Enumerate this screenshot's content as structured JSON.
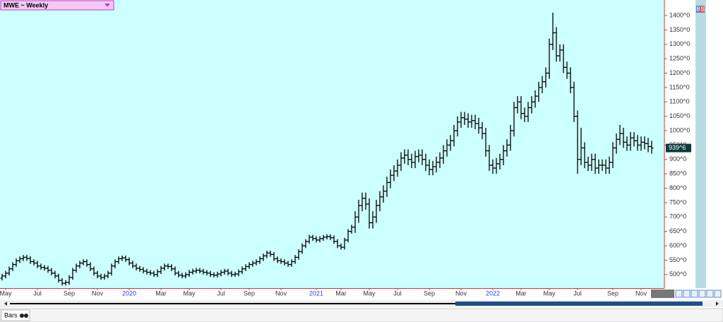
{
  "chart_data": {
    "type": "ohlc",
    "title": "MWE ~ Weekly",
    "color": "#000000",
    "background": "#ccffff",
    "grid": false,
    "ylim": [
      453,
      1454
    ],
    "yticks": [
      {
        "value": 500,
        "label": "500^0"
      },
      {
        "value": 550,
        "label": "550^0"
      },
      {
        "value": 600,
        "label": "600^0"
      },
      {
        "value": 650,
        "label": "650^0"
      },
      {
        "value": 700,
        "label": "700^0"
      },
      {
        "value": 750,
        "label": "750^0"
      },
      {
        "value": 800,
        "label": "800^0"
      },
      {
        "value": 850,
        "label": "850^0"
      },
      {
        "value": 900,
        "label": "900^0"
      },
      {
        "value": 950,
        "label": "950^0"
      },
      {
        "value": 1000,
        "label": "1000^0"
      },
      {
        "value": 1050,
        "label": "1050^0"
      },
      {
        "value": 1100,
        "label": "1100^0"
      },
      {
        "value": 1150,
        "label": "1150^0"
      },
      {
        "value": 1200,
        "label": "1200^0"
      },
      {
        "value": 1250,
        "label": "1250^0"
      },
      {
        "value": 1300,
        "label": "1300^0"
      },
      {
        "value": 1350,
        "label": "1350^0"
      },
      {
        "value": 1400,
        "label": "1400^0"
      }
    ],
    "xlim": [
      -0.6,
      187.6
    ],
    "xticks": [
      {
        "value": 1,
        "label": "May"
      },
      {
        "value": 10,
        "label": "Jul"
      },
      {
        "value": 19,
        "label": "Sep"
      },
      {
        "value": 27,
        "label": "Nov"
      },
      {
        "value": 36,
        "label": "2020"
      },
      {
        "value": 45,
        "label": "Mar"
      },
      {
        "value": 53,
        "label": "May"
      },
      {
        "value": 62,
        "label": "Jul"
      },
      {
        "value": 70,
        "label": "Sep"
      },
      {
        "value": 79,
        "label": "Nov"
      },
      {
        "value": 89,
        "label": "2021"
      },
      {
        "value": 96,
        "label": "Mar"
      },
      {
        "value": 104,
        "label": "May"
      },
      {
        "value": 112,
        "label": "Jul"
      },
      {
        "value": 121,
        "label": "Sep"
      },
      {
        "value": 130,
        "label": "Nov"
      },
      {
        "value": 139,
        "label": "2022"
      },
      {
        "value": 147,
        "label": "Mar"
      },
      {
        "value": 155,
        "label": "May"
      },
      {
        "value": 163,
        "label": "Jul"
      },
      {
        "value": 173,
        "label": "Sep"
      },
      {
        "value": 181,
        "label": "Nov"
      }
    ],
    "open": [
      488,
      495,
      505,
      520,
      535,
      548,
      555,
      560,
      556,
      545,
      540,
      530,
      525,
      522,
      515,
      505,
      495,
      480,
      470,
      473,
      490,
      515,
      530,
      540,
      545,
      535,
      520,
      505,
      495,
      490,
      495,
      505,
      530,
      545,
      555,
      558,
      552,
      540,
      530,
      522,
      518,
      512,
      508,
      505,
      500,
      510,
      522,
      530,
      528,
      520,
      505,
      498,
      495,
      500,
      508,
      512,
      515,
      512,
      508,
      505,
      500,
      498,
      502,
      508,
      512,
      505,
      500,
      502,
      510,
      520,
      528,
      535,
      540,
      545,
      555,
      565,
      575,
      570,
      555,
      548,
      545,
      540,
      535,
      545,
      560,
      580,
      600,
      615,
      630,
      625,
      620,
      625,
      630,
      632,
      628,
      615,
      600,
      595,
      620,
      650,
      665,
      700,
      740,
      765,
      745,
      680,
      700,
      740,
      770,
      790,
      820,
      845,
      860,
      880,
      905,
      915,
      900,
      890,
      910,
      915,
      900,
      880,
      865,
      875,
      890,
      905,
      930,
      950,
      965,
      1000,
      1030,
      1045,
      1040,
      1030,
      1035,
      1025,
      1010,
      990,
      930,
      880,
      870,
      885,
      900,
      930,
      950,
      1000,
      1080,
      1100,
      1060,
      1050,
      1080,
      1100,
      1120,
      1150,
      1170,
      1200,
      1300,
      1340,
      1260,
      1280,
      1220,
      1200,
      1150,
      1050,
      900,
      940,
      890,
      880,
      900,
      870,
      880,
      880,
      870,
      890,
      940,
      970,
      990,
      960,
      950,
      975,
      965,
      950,
      960,
      955,
      945
    ],
    "high": [
      503,
      513,
      528,
      543,
      556,
      563,
      568,
      568,
      564,
      553,
      548,
      538,
      533,
      530,
      523,
      513,
      503,
      488,
      481,
      498,
      523,
      538,
      548,
      553,
      553,
      543,
      528,
      513,
      503,
      503,
      513,
      538,
      553,
      563,
      566,
      566,
      560,
      548,
      538,
      530,
      526,
      520,
      516,
      513,
      518,
      530,
      538,
      538,
      536,
      528,
      513,
      506,
      508,
      516,
      520,
      523,
      523,
      520,
      516,
      513,
      508,
      510,
      516,
      520,
      520,
      513,
      510,
      518,
      528,
      536,
      543,
      548,
      553,
      563,
      573,
      583,
      583,
      578,
      563,
      556,
      553,
      548,
      553,
      568,
      588,
      608,
      623,
      638,
      638,
      633,
      633,
      638,
      640,
      640,
      636,
      623,
      608,
      628,
      658,
      673,
      720,
      760,
      785,
      785,
      765,
      720,
      760,
      790,
      810,
      840,
      865,
      880,
      900,
      925,
      935,
      935,
      920,
      930,
      935,
      935,
      920,
      900,
      895,
      910,
      925,
      950,
      970,
      985,
      1020,
      1050,
      1065,
      1065,
      1060,
      1055,
      1055,
      1045,
      1030,
      1010,
      950,
      900,
      905,
      920,
      950,
      970,
      1020,
      1100,
      1120,
      1120,
      1080,
      1100,
      1120,
      1140,
      1170,
      1190,
      1220,
      1320,
      1410,
      1360,
      1300,
      1300,
      1240,
      1220,
      1170,
      1070,
      1010,
      960,
      910,
      920,
      920,
      900,
      900,
      900,
      910,
      960,
      990,
      1020,
      1010,
      980,
      995,
      995,
      985,
      980,
      980,
      975,
      965
    ],
    "low": [
      480,
      487,
      497,
      512,
      527,
      540,
      547,
      548,
      537,
      532,
      522,
      517,
      514,
      507,
      497,
      487,
      472,
      462,
      462,
      465,
      482,
      507,
      522,
      532,
      527,
      512,
      497,
      487,
      482,
      482,
      487,
      497,
      522,
      537,
      547,
      544,
      532,
      522,
      514,
      510,
      504,
      500,
      497,
      492,
      492,
      502,
      514,
      520,
      512,
      497,
      490,
      487,
      487,
      492,
      500,
      504,
      504,
      500,
      497,
      492,
      490,
      490,
      494,
      500,
      497,
      492,
      492,
      494,
      502,
      512,
      520,
      527,
      532,
      537,
      547,
      557,
      562,
      547,
      540,
      537,
      532,
      527,
      527,
      537,
      552,
      572,
      592,
      607,
      617,
      612,
      612,
      617,
      622,
      620,
      607,
      592,
      587,
      587,
      612,
      642,
      645,
      680,
      720,
      725,
      660,
      660,
      680,
      720,
      750,
      770,
      800,
      825,
      840,
      860,
      885,
      880,
      870,
      870,
      890,
      880,
      860,
      845,
      845,
      855,
      870,
      885,
      910,
      930,
      945,
      980,
      1010,
      1020,
      1010,
      1010,
      1005,
      990,
      970,
      910,
      860,
      850,
      850,
      865,
      880,
      910,
      930,
      980,
      1060,
      1040,
      1030,
      1030,
      1060,
      1080,
      1100,
      1130,
      1150,
      1180,
      1280,
      1240,
      1240,
      1200,
      1180,
      1130,
      1030,
      850,
      880,
      870,
      860,
      860,
      850,
      850,
      860,
      850,
      850,
      870,
      920,
      950,
      940,
      930,
      930,
      945,
      930,
      930,
      935,
      925,
      920
    ],
    "close": [
      495,
      505,
      520,
      535,
      548,
      555,
      560,
      556,
      545,
      540,
      530,
      525,
      522,
      515,
      505,
      495,
      480,
      470,
      473,
      490,
      515,
      530,
      540,
      545,
      535,
      520,
      505,
      495,
      490,
      495,
      505,
      530,
      545,
      555,
      558,
      552,
      540,
      530,
      522,
      518,
      512,
      508,
      505,
      500,
      510,
      522,
      530,
      528,
      520,
      505,
      498,
      495,
      500,
      508,
      512,
      515,
      512,
      508,
      505,
      500,
      498,
      502,
      508,
      512,
      505,
      500,
      502,
      510,
      520,
      528,
      535,
      540,
      545,
      555,
      565,
      575,
      570,
      555,
      548,
      545,
      540,
      535,
      545,
      560,
      580,
      600,
      615,
      630,
      625,
      620,
      625,
      630,
      632,
      628,
      615,
      600,
      595,
      620,
      650,
      665,
      700,
      740,
      765,
      745,
      680,
      700,
      740,
      770,
      790,
      820,
      845,
      860,
      880,
      905,
      915,
      900,
      890,
      910,
      915,
      900,
      880,
      865,
      875,
      890,
      905,
      930,
      950,
      965,
      1000,
      1030,
      1045,
      1040,
      1030,
      1035,
      1025,
      1010,
      990,
      930,
      880,
      870,
      885,
      900,
      930,
      950,
      1000,
      1080,
      1100,
      1060,
      1050,
      1080,
      1100,
      1120,
      1150,
      1170,
      1200,
      1300,
      1340,
      1260,
      1280,
      1220,
      1200,
      1150,
      1050,
      900,
      940,
      890,
      880,
      900,
      870,
      880,
      880,
      870,
      890,
      940,
      970,
      990,
      960,
      950,
      975,
      965,
      950,
      960,
      955,
      945,
      939.75
    ],
    "last_price": 939.75,
    "last_price_label": "939^6",
    "badges": [
      "B",
      "S"
    ],
    "footer": "Bars"
  }
}
